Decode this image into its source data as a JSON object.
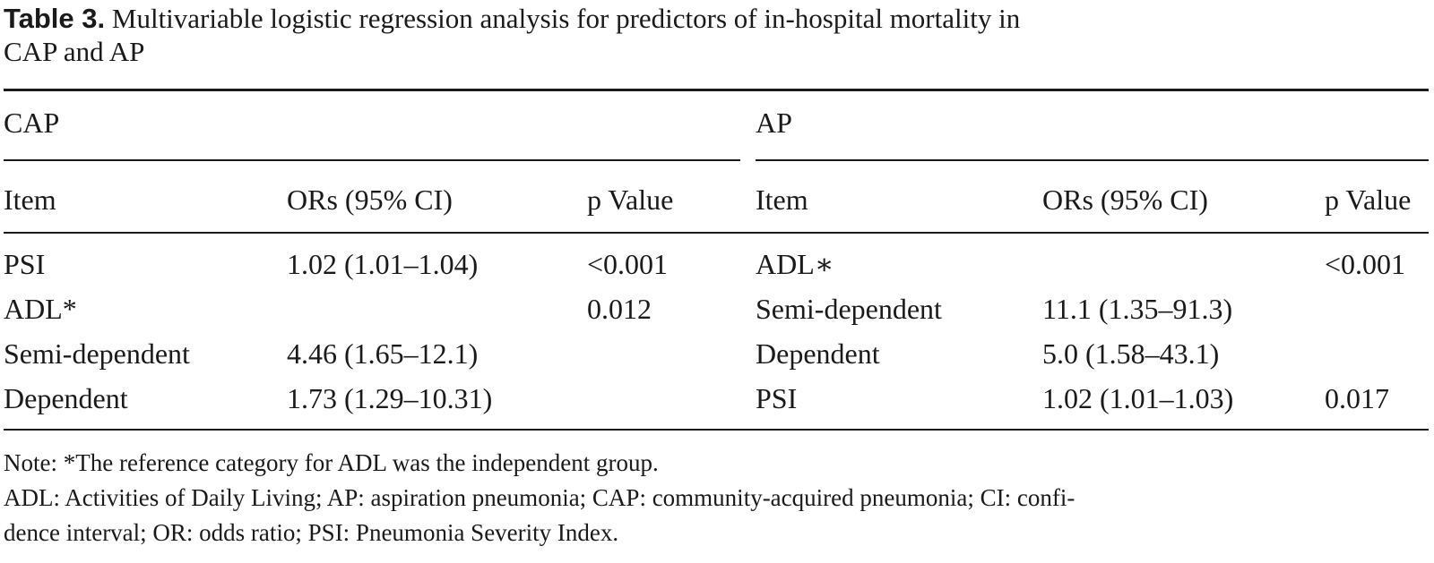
{
  "caption": {
    "label": "Table 3.",
    "line1": " Multivariable logistic regression analysis for predictors of in-hospital mortality in",
    "line2": "CAP and AP"
  },
  "groups": {
    "left": "CAP",
    "right": "AP"
  },
  "headers": {
    "left": [
      "Item",
      "ORs (95% CI)",
      "p Value"
    ],
    "right": [
      "Item",
      "ORs (95% CI)",
      "p Value"
    ]
  },
  "rows": [
    {
      "left": [
        "PSI",
        "1.02 (1.01–1.04)",
        "<0.001"
      ],
      "right": [
        "ADL∗",
        "",
        "<0.001"
      ]
    },
    {
      "left": [
        "ADL*",
        "",
        "0.012"
      ],
      "right": [
        "Semi-dependent",
        "11.1 (1.35–91.3)",
        ""
      ]
    },
    {
      "left": [
        "Semi-dependent",
        "4.46 (1.65–12.1)",
        ""
      ],
      "right": [
        "Dependent",
        "5.0 (1.58–43.1)",
        ""
      ]
    },
    {
      "left": [
        "Dependent",
        "1.73 (1.29–10.31)",
        ""
      ],
      "right": [
        "PSI",
        "1.02 (1.01–1.03)",
        "0.017"
      ]
    }
  ],
  "notes": [
    "Note: *The reference category for ADL was the independent group.",
    "ADL: Activities of Daily Living; AP: aspiration pneumonia; CAP: community-acquired pneumonia; CI: confi-",
    "dence interval; OR: odds ratio; PSI: Pneumonia Severity Index."
  ]
}
